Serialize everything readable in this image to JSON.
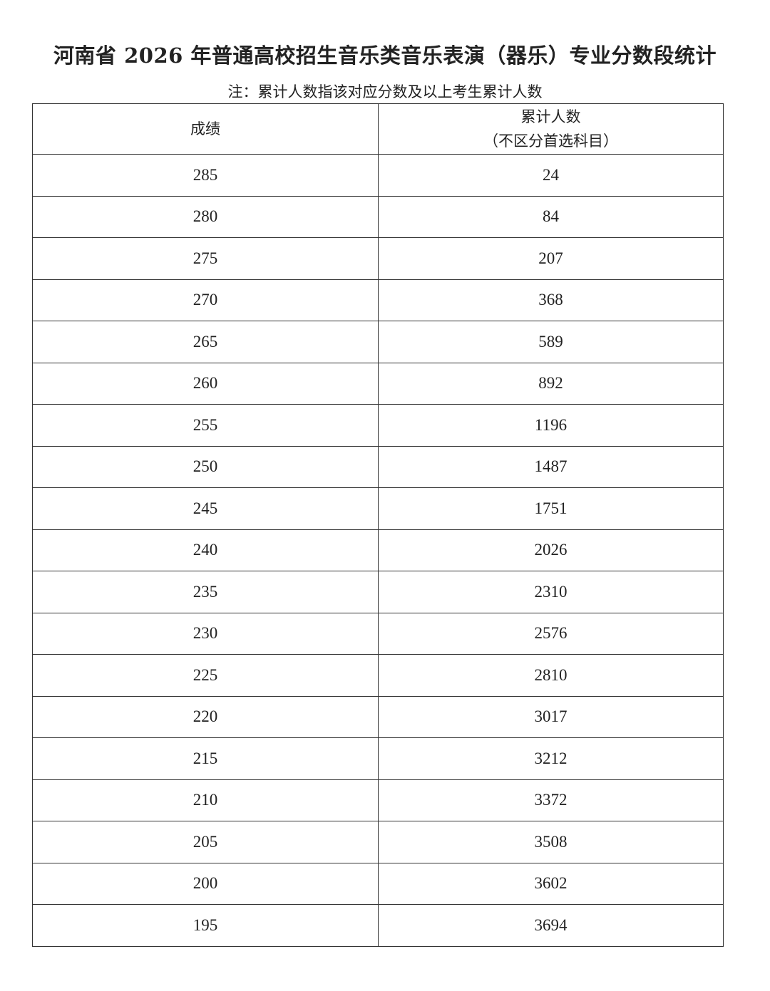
{
  "title": "河南省 2026 年普通高校招生音乐类音乐表演（器乐）专业分数段统计",
  "note": "注：累计人数指该对应分数及以上考生累计人数",
  "table": {
    "headers": {
      "score": "成绩",
      "count_line1": "累计人数",
      "count_line2": "（不区分首选科目）"
    },
    "rows": [
      {
        "score": "285",
        "count": "24"
      },
      {
        "score": "280",
        "count": "84"
      },
      {
        "score": "275",
        "count": "207"
      },
      {
        "score": "270",
        "count": "368"
      },
      {
        "score": "265",
        "count": "589"
      },
      {
        "score": "260",
        "count": "892"
      },
      {
        "score": "255",
        "count": "1196"
      },
      {
        "score": "250",
        "count": "1487"
      },
      {
        "score": "245",
        "count": "1751"
      },
      {
        "score": "240",
        "count": "2026"
      },
      {
        "score": "235",
        "count": "2310"
      },
      {
        "score": "230",
        "count": "2576"
      },
      {
        "score": "225",
        "count": "2810"
      },
      {
        "score": "220",
        "count": "3017"
      },
      {
        "score": "215",
        "count": "3212"
      },
      {
        "score": "210",
        "count": "3372"
      },
      {
        "score": "205",
        "count": "3508"
      },
      {
        "score": "200",
        "count": "3602"
      },
      {
        "score": "195",
        "count": "3694"
      }
    ]
  }
}
